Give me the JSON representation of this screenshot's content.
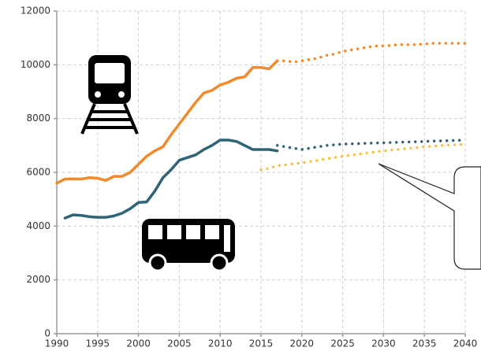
{
  "chart_data": {
    "type": "line",
    "xlim": [
      1990,
      2040
    ],
    "xticks": [
      1990,
      1995,
      2000,
      2005,
      2010,
      2015,
      2020,
      2025,
      2030,
      2035,
      2040
    ],
    "ylim": [
      0,
      12000
    ],
    "yticks": [
      0,
      2000,
      4000,
      6000,
      8000,
      10000,
      12000
    ],
    "grid": true,
    "series": [
      {
        "color": "#f08a2c",
        "style": "solid",
        "x": [
          1990,
          1991,
          1992,
          1993,
          1994,
          1995,
          1996,
          1997,
          1998,
          1999,
          2000,
          2001,
          2002,
          2003,
          2004,
          2005,
          2006,
          2007,
          2008,
          2009,
          2010,
          2011,
          2012,
          2013,
          2014,
          2015,
          2016,
          2017
        ],
        "values": [
          5600,
          5750,
          5760,
          5750,
          5800,
          5780,
          5700,
          5850,
          5850,
          6000,
          6300,
          6600,
          6800,
          6950,
          7400,
          7800,
          8200,
          8600,
          8950,
          9050,
          9250,
          9350,
          9500,
          9550,
          9900,
          9900,
          9850,
          10150
        ]
      },
      {
        "color": "#f08a2c",
        "style": "dotted",
        "x": [
          2017,
          2018,
          2019,
          2020,
          2021,
          2022,
          2023,
          2024,
          2025,
          2026,
          2027,
          2028,
          2029,
          2030,
          2032,
          2034,
          2036,
          2038,
          2040
        ],
        "values": [
          10150,
          10150,
          10100,
          10150,
          10200,
          10250,
          10350,
          10400,
          10500,
          10550,
          10600,
          10650,
          10700,
          10700,
          10750,
          10750,
          10800,
          10800,
          10800
        ]
      },
      {
        "color": "#2e6378",
        "style": "solid",
        "x": [
          1991,
          1992,
          1993,
          1994,
          1995,
          1996,
          1997,
          1998,
          1999,
          2000,
          2001,
          2002,
          2003,
          2004,
          2005,
          2006,
          2007,
          2008,
          2009,
          2010,
          2011,
          2012,
          2013,
          2014,
          2015,
          2016,
          2017
        ],
        "values": [
          4300,
          4420,
          4400,
          4350,
          4330,
          4330,
          4380,
          4480,
          4650,
          4880,
          4900,
          5300,
          5800,
          6100,
          6450,
          6550,
          6650,
          6850,
          7000,
          7200,
          7200,
          7150,
          7000,
          6850,
          6850,
          6850,
          6800
        ]
      },
      {
        "color": "#2e6378",
        "style": "dotted",
        "x": [
          2017,
          2018,
          2019,
          2020,
          2021,
          2022,
          2023,
          2025,
          2030,
          2035,
          2040
        ],
        "values": [
          7000,
          6950,
          6900,
          6850,
          6900,
          6950,
          7000,
          7050,
          7100,
          7150,
          7200
        ]
      },
      {
        "color": "#f5c242",
        "style": "dotted",
        "x": [
          2015,
          2016,
          2017,
          2020,
          2025,
          2030,
          2035,
          2040
        ],
        "values": [
          6100,
          6150,
          6250,
          6350,
          6600,
          6800,
          6950,
          7050
        ]
      }
    ]
  }
}
